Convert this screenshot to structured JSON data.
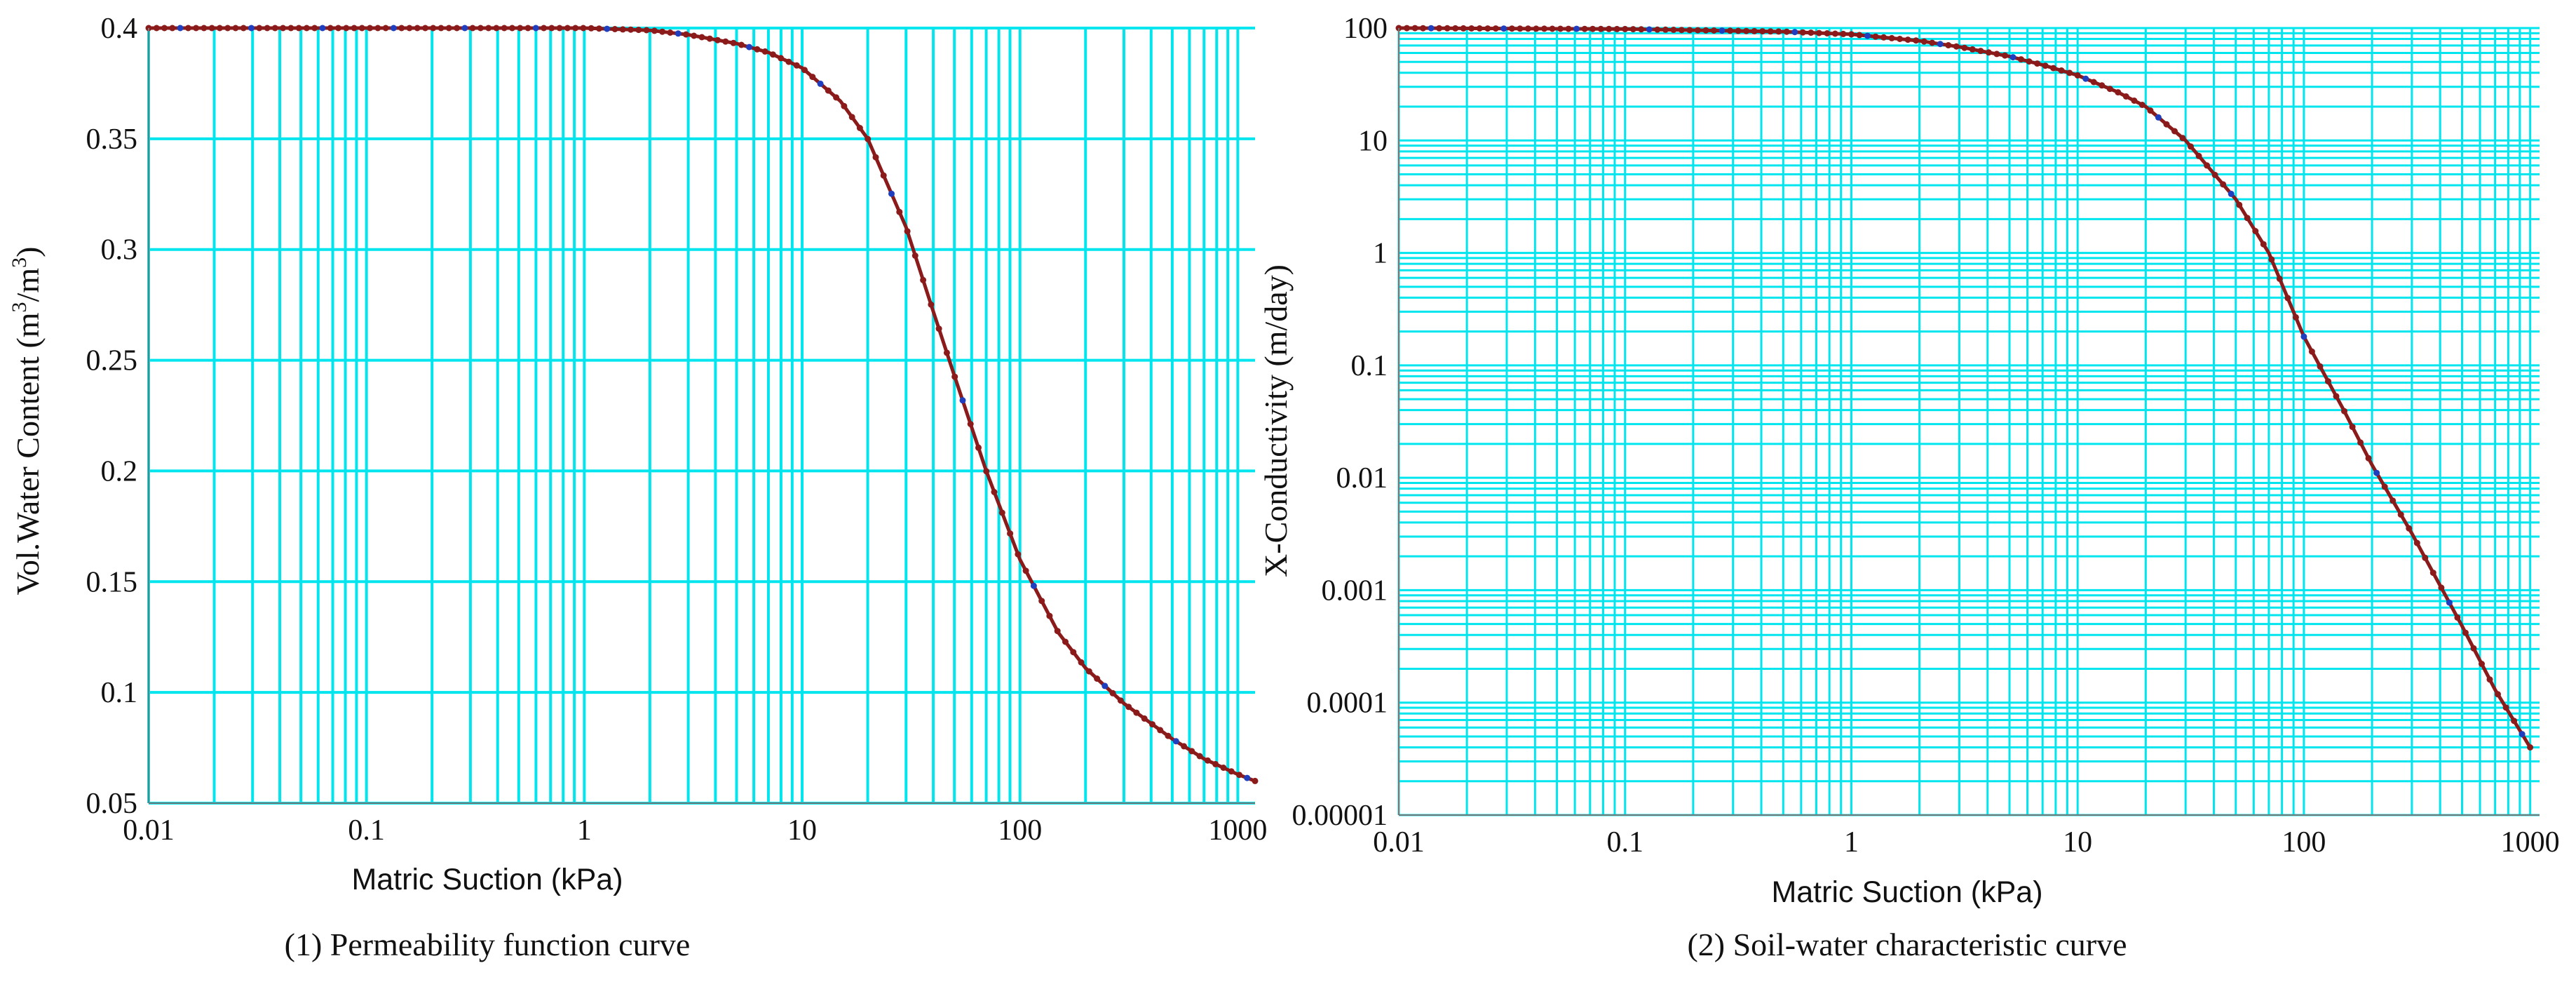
{
  "chart_data": [
    {
      "type": "line",
      "caption": "(1) Permeability function curve",
      "xlabel": "Matric Suction  (kPa)",
      "ylabel_main": "Vol.Water Content  (m",
      "ylabel_sup1": "3",
      "ylabel_mid": "/m",
      "ylabel_sup2": "3",
      "ylabel_end": ")",
      "x_scale": "log",
      "y_scale": "linear",
      "xlim": [
        0.01,
        1200
      ],
      "ylim": [
        0.05,
        0.4
      ],
      "x_ticks": [
        0.01,
        0.1,
        1,
        10,
        100,
        1000
      ],
      "x_tick_labels": [
        "0.01",
        "0.1",
        "1",
        "10",
        "100",
        "1000"
      ],
      "y_ticks": [
        0.05,
        0.1,
        0.15,
        0.2,
        0.25,
        0.3,
        0.35,
        0.4
      ],
      "y_tick_labels": [
        "0.05",
        "0.1",
        "0.15",
        "0.2",
        "0.25",
        "0.3",
        "0.35",
        "0.4"
      ],
      "grid": true,
      "grid_color": "#00e5ee",
      "line_color": "#8b1a1a",
      "marker_colors": [
        "#8b1a1a",
        "#1f3fbf"
      ],
      "series": [
        {
          "name": "curve",
          "points": [
            [
              0.01,
              0.4
            ],
            [
              0.1,
              0.4
            ],
            [
              1,
              0.4
            ],
            [
              2,
              0.399
            ],
            [
              3,
              0.397
            ],
            [
              5,
              0.393
            ],
            [
              7,
              0.389
            ],
            [
              10,
              0.382
            ],
            [
              15,
              0.367
            ],
            [
              20,
              0.35
            ],
            [
              30,
              0.31
            ],
            [
              40,
              0.272
            ],
            [
              50,
              0.243
            ],
            [
              70,
              0.2
            ],
            [
              100,
              0.16
            ],
            [
              150,
              0.127
            ],
            [
              200,
              0.111
            ],
            [
              300,
              0.095
            ],
            [
              500,
              0.079
            ],
            [
              700,
              0.07
            ],
            [
              1000,
              0.063
            ],
            [
              1200,
              0.06
            ]
          ]
        }
      ]
    },
    {
      "type": "line",
      "caption": "(2) Soil-water characteristic curve",
      "xlabel": "Matric Suction  (kPa)",
      "ylabel": "X-Conductivity  (m/day)",
      "x_scale": "log",
      "y_scale": "log",
      "xlim": [
        0.01,
        1100
      ],
      "ylim": [
        1e-05,
        100
      ],
      "x_ticks": [
        0.01,
        0.1,
        1,
        10,
        100,
        1000
      ],
      "x_tick_labels": [
        "0.01",
        "0.1",
        "1",
        "10",
        "100",
        "1000"
      ],
      "y_ticks": [
        1e-05,
        0.0001,
        0.001,
        0.01,
        0.1,
        1,
        10,
        100
      ],
      "y_tick_labels": [
        "0.00001",
        "0.0001",
        "0.001",
        "0.01",
        "0.1",
        "1",
        "10",
        "100"
      ],
      "grid": true,
      "grid_color": "#00e5ee",
      "line_color": "#8b1a1a",
      "marker_colors": [
        "#8b1a1a",
        "#1f3fbf"
      ],
      "series": [
        {
          "name": "curve",
          "points": [
            [
              0.01,
              100
            ],
            [
              0.1,
              98
            ],
            [
              0.5,
              93
            ],
            [
              1,
              88
            ],
            [
              2,
              77
            ],
            [
              3,
              68
            ],
            [
              5,
              56
            ],
            [
              7,
              47
            ],
            [
              10,
              38
            ],
            [
              15,
              27
            ],
            [
              20,
              20
            ],
            [
              30,
              10
            ],
            [
              50,
              3
            ],
            [
              70,
              1
            ],
            [
              100,
              0.18
            ],
            [
              150,
              0.04
            ],
            [
              200,
              0.013
            ],
            [
              300,
              0.0032
            ],
            [
              500,
              0.00048
            ],
            [
              700,
              0.00013
            ],
            [
              1000,
              4e-05
            ]
          ]
        }
      ]
    }
  ]
}
